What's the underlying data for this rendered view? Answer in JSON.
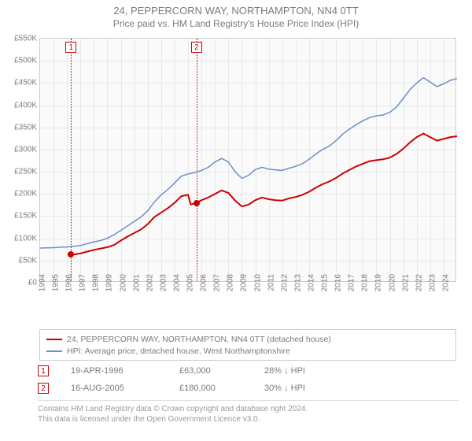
{
  "title_line1": "24, PEPPERCORN WAY, NORTHAMPTON, NN4 0TT",
  "title_line2": "Price paid vs. HM Land Registry's House Price Index (HPI)",
  "chart": {
    "type": "line",
    "background_color": "#fafafa",
    "grid_color": "#e8e8e8",
    "border_color": "#cccccc",
    "axis_label_color": "#7b7b7b",
    "axis_fontsize": 10,
    "title_fontsize": 13,
    "xlim": [
      1994,
      2025
    ],
    "ylim": [
      0,
      550000
    ],
    "ytick_step": 50000,
    "yticks": [
      "£0",
      "£50K",
      "£100K",
      "£150K",
      "£200K",
      "£250K",
      "£300K",
      "£350K",
      "£400K",
      "£450K",
      "£500K",
      "£550K"
    ],
    "xticks": [
      1994,
      1995,
      1996,
      1997,
      1998,
      1999,
      2000,
      2001,
      2002,
      2003,
      2004,
      2005,
      2006,
      2007,
      2008,
      2009,
      2010,
      2011,
      2012,
      2013,
      2014,
      2015,
      2016,
      2017,
      2018,
      2019,
      2020,
      2021,
      2022,
      2023,
      2024
    ],
    "series": [
      {
        "name": "24, PEPPERCORN WAY, NORTHAMPTON, NN4 0TT (detached house)",
        "color": "#cc0000",
        "line_width": 2,
        "data": [
          [
            1996.3,
            63000
          ],
          [
            1996.6,
            64000
          ],
          [
            1997.0,
            66000
          ],
          [
            1997.5,
            70000
          ],
          [
            1998.0,
            74000
          ],
          [
            1998.5,
            77000
          ],
          [
            1999.0,
            80000
          ],
          [
            1999.5,
            85000
          ],
          [
            2000.0,
            95000
          ],
          [
            2000.5,
            104000
          ],
          [
            2001.0,
            112000
          ],
          [
            2001.5,
            120000
          ],
          [
            2002.0,
            132000
          ],
          [
            2002.5,
            148000
          ],
          [
            2003.0,
            158000
          ],
          [
            2003.5,
            168000
          ],
          [
            2004.0,
            180000
          ],
          [
            2004.5,
            195000
          ],
          [
            2005.0,
            198000
          ],
          [
            2005.2,
            176000
          ],
          [
            2005.63,
            180000
          ],
          [
            2006.0,
            186000
          ],
          [
            2006.5,
            192000
          ],
          [
            2007.0,
            200000
          ],
          [
            2007.5,
            208000
          ],
          [
            2008.0,
            202000
          ],
          [
            2008.5,
            185000
          ],
          [
            2009.0,
            172000
          ],
          [
            2009.5,
            176000
          ],
          [
            2010.0,
            186000
          ],
          [
            2010.5,
            192000
          ],
          [
            2011.0,
            188000
          ],
          [
            2011.5,
            186000
          ],
          [
            2012.0,
            185000
          ],
          [
            2012.5,
            190000
          ],
          [
            2013.0,
            193000
          ],
          [
            2013.5,
            198000
          ],
          [
            2014.0,
            205000
          ],
          [
            2014.5,
            214000
          ],
          [
            2015.0,
            222000
          ],
          [
            2015.5,
            228000
          ],
          [
            2016.0,
            236000
          ],
          [
            2016.5,
            246000
          ],
          [
            2017.0,
            254000
          ],
          [
            2017.5,
            262000
          ],
          [
            2018.0,
            268000
          ],
          [
            2018.5,
            274000
          ],
          [
            2019.0,
            276000
          ],
          [
            2019.5,
            278000
          ],
          [
            2020.0,
            282000
          ],
          [
            2020.5,
            290000
          ],
          [
            2021.0,
            302000
          ],
          [
            2021.5,
            316000
          ],
          [
            2022.0,
            328000
          ],
          [
            2022.5,
            336000
          ],
          [
            2023.0,
            328000
          ],
          [
            2023.5,
            320000
          ],
          [
            2024.0,
            324000
          ],
          [
            2024.5,
            328000
          ],
          [
            2025.0,
            330000
          ]
        ],
        "markers": [
          {
            "x": 1996.3,
            "y": 63000
          },
          {
            "x": 2005.63,
            "y": 180000
          }
        ]
      },
      {
        "name": "HPI: Average price, detached house, West Northamptonshire",
        "color": "#6b90c4",
        "line_width": 1.5,
        "data": [
          [
            1994.0,
            78000
          ],
          [
            1994.5,
            78500
          ],
          [
            1995.0,
            79000
          ],
          [
            1995.5,
            80000
          ],
          [
            1996.0,
            80500
          ],
          [
            1996.5,
            82000
          ],
          [
            1997.0,
            84000
          ],
          [
            1997.5,
            88000
          ],
          [
            1998.0,
            92000
          ],
          [
            1998.5,
            95000
          ],
          [
            1999.0,
            100000
          ],
          [
            1999.5,
            108000
          ],
          [
            2000.0,
            118000
          ],
          [
            2000.5,
            128000
          ],
          [
            2001.0,
            138000
          ],
          [
            2001.5,
            148000
          ],
          [
            2002.0,
            162000
          ],
          [
            2002.5,
            182000
          ],
          [
            2003.0,
            198000
          ],
          [
            2003.5,
            210000
          ],
          [
            2004.0,
            225000
          ],
          [
            2004.5,
            240000
          ],
          [
            2005.0,
            245000
          ],
          [
            2005.5,
            248000
          ],
          [
            2006.0,
            253000
          ],
          [
            2006.5,
            260000
          ],
          [
            2007.0,
            272000
          ],
          [
            2007.5,
            280000
          ],
          [
            2008.0,
            272000
          ],
          [
            2008.5,
            250000
          ],
          [
            2009.0,
            235000
          ],
          [
            2009.5,
            242000
          ],
          [
            2010.0,
            255000
          ],
          [
            2010.5,
            260000
          ],
          [
            2011.0,
            256000
          ],
          [
            2011.5,
            254000
          ],
          [
            2012.0,
            253000
          ],
          [
            2012.5,
            258000
          ],
          [
            2013.0,
            262000
          ],
          [
            2013.5,
            268000
          ],
          [
            2014.0,
            278000
          ],
          [
            2014.5,
            290000
          ],
          [
            2015.0,
            300000
          ],
          [
            2015.5,
            308000
          ],
          [
            2016.0,
            320000
          ],
          [
            2016.5,
            335000
          ],
          [
            2017.0,
            346000
          ],
          [
            2017.5,
            356000
          ],
          [
            2018.0,
            365000
          ],
          [
            2018.5,
            372000
          ],
          [
            2019.0,
            376000
          ],
          [
            2019.5,
            378000
          ],
          [
            2020.0,
            384000
          ],
          [
            2020.5,
            396000
          ],
          [
            2021.0,
            415000
          ],
          [
            2021.5,
            435000
          ],
          [
            2022.0,
            450000
          ],
          [
            2022.5,
            462000
          ],
          [
            2023.0,
            452000
          ],
          [
            2023.5,
            442000
          ],
          [
            2024.0,
            448000
          ],
          [
            2024.5,
            456000
          ],
          [
            2025.0,
            460000
          ]
        ]
      }
    ],
    "annotations": [
      {
        "n": "1",
        "x": 1996.3
      },
      {
        "n": "2",
        "x": 2005.63
      }
    ]
  },
  "legend": {
    "rows": [
      {
        "color": "#cc0000",
        "text": "24, PEPPERCORN WAY, NORTHAMPTON, NN4 0TT (detached house)"
      },
      {
        "color": "#6b90c4",
        "text": "HPI: Average price, detached house, West Northamptonshire"
      }
    ]
  },
  "info": [
    {
      "n": "1",
      "date": "19-APR-1996",
      "price": "£63,000",
      "delta": "28% ↓ HPI"
    },
    {
      "n": "2",
      "date": "16-AUG-2005",
      "price": "£180,000",
      "delta": "30% ↓ HPI"
    }
  ],
  "footer_line1": "Contains HM Land Registry data © Crown copyright and database right 2024.",
  "footer_line2": "This data is licensed under the Open Government Licence v3.0."
}
